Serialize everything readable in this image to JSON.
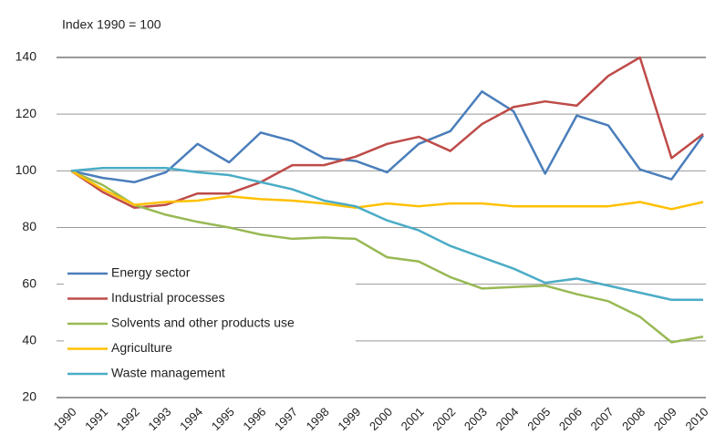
{
  "chart_data": {
    "type": "line",
    "title": "Index 1990 = 100",
    "categories": [
      "1990",
      "1991",
      "1992",
      "1993",
      "1994",
      "1995",
      "1996",
      "1997",
      "1998",
      "1999",
      "2000",
      "2001",
      "2002",
      "2003",
      "2004",
      "2005",
      "2006",
      "2007",
      "2008",
      "2009",
      "2010"
    ],
    "series": [
      {
        "name": "Energy sector",
        "color": "#4a7ebb",
        "values": [
          100,
          97.5,
          96,
          99.5,
          109.5,
          103,
          113.5,
          110.5,
          104.5,
          103.5,
          99.5,
          109.5,
          114,
          128,
          121,
          99,
          119.5,
          116,
          100.5,
          97,
          112.5
        ]
      },
      {
        "name": "Industrial processes",
        "color": "#be4b48",
        "values": [
          100,
          92.5,
          87,
          88,
          92,
          92,
          96,
          102,
          102,
          105,
          109.5,
          112,
          107,
          116.5,
          122.5,
          124.5,
          123,
          133.5,
          140,
          104.5,
          113
        ]
      },
      {
        "name": "Solvents and other products use",
        "color": "#98b954",
        "values": [
          100,
          95,
          88,
          84.5,
          82,
          80,
          77.5,
          76,
          76.5,
          76,
          69.5,
          68,
          62.5,
          58.5,
          59,
          59.5,
          56.5,
          54,
          48.5,
          39.5,
          41.5
        ]
      },
      {
        "name": "Agriculture",
        "color": "#ffc000",
        "values": [
          100,
          93.5,
          88,
          89,
          89.5,
          91,
          90,
          89.5,
          88.5,
          87,
          88.5,
          87.5,
          88.5,
          88.5,
          87.5,
          87.5,
          87.5,
          87.5,
          89,
          86.5,
          89
        ]
      },
      {
        "name": "Waste management",
        "color": "#4bacc6",
        "values": [
          100,
          101,
          101,
          101,
          99.5,
          98.5,
          96,
          93.5,
          89.5,
          87.5,
          82.5,
          79,
          73.5,
          69.5,
          65.5,
          60.5,
          62,
          59.5,
          57,
          54.5,
          54.5
        ]
      }
    ],
    "ylim": [
      20,
      140
    ],
    "yticks": [
      20,
      40,
      60,
      80,
      100,
      120,
      140
    ],
    "grid": true,
    "legend": "lower left"
  }
}
